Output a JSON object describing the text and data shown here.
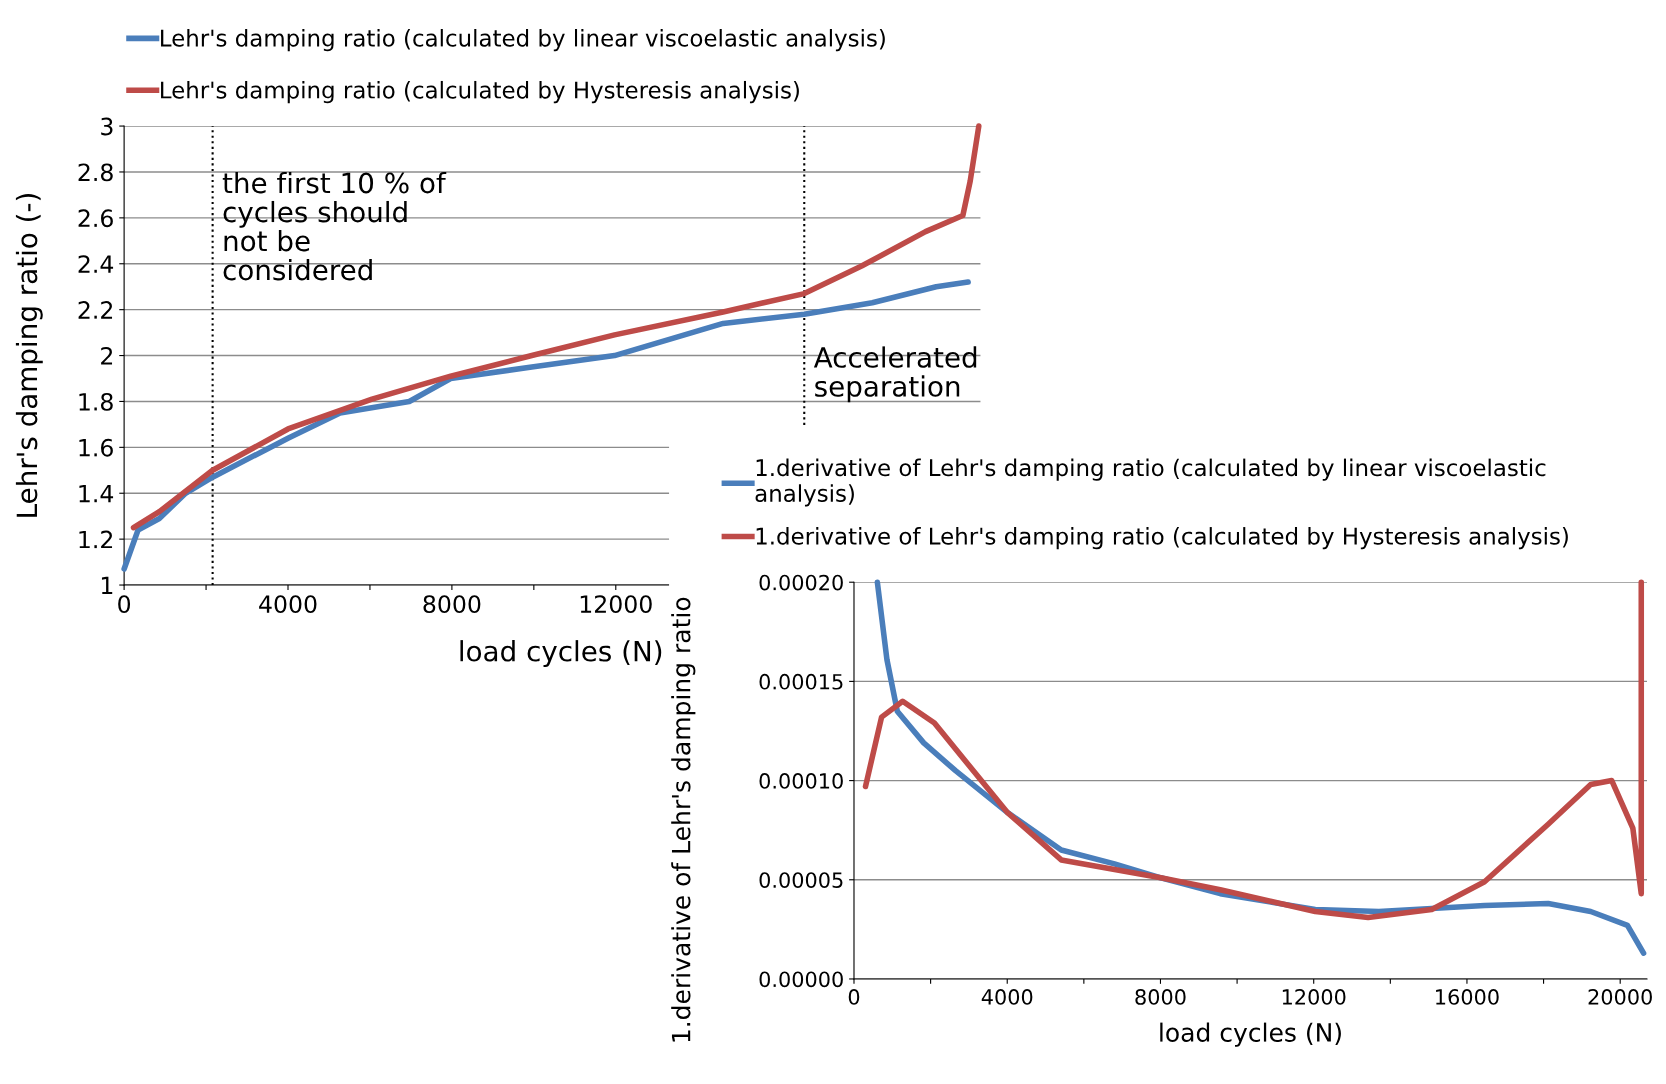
{
  "chart_data": [
    {
      "type": "line",
      "ylabel": "Lehr's damping ratio (-)",
      "xlabel": "load cycles (N)",
      "xlim": [
        0,
        20900
      ],
      "ylim": [
        1,
        3
      ],
      "xticks": [
        0,
        {
          "value": 2000,
          "label": null
        },
        4000,
        {
          "value": 6000,
          "label": null
        },
        8000,
        {
          "value": 10000,
          "label": null
        },
        12000
      ],
      "yticks": [
        1,
        1.2,
        1.4,
        1.6,
        1.8,
        2,
        2.2,
        2.4,
        2.6,
        2.8,
        3
      ],
      "grid": "y",
      "legend": "top",
      "line_style": "solid",
      "marker": "none",
      "ref_lines": [
        {
          "axis": "x",
          "value": 2160,
          "label": "the first 10 % of\ncycles should\nnot be\nconsidered",
          "line_style": "dotted",
          "color": "#000000"
        },
        {
          "axis": "x",
          "value": 16600,
          "label": "Accelerated\nseparation",
          "line_style": "dotted",
          "color": "#000000"
        }
      ],
      "series": [
        {
          "name": "Lehr's damping ratio (calculated by linear viscoelastic analysis)",
          "color": "#4a7ebb",
          "x": [
            0,
            340,
            860,
            1500,
            2160,
            4000,
            5270,
            6960,
            7970,
            9950,
            11970,
            14620,
            16600,
            18260,
            19820,
            20600
          ],
          "values": [
            1.07,
            1.24,
            1.29,
            1.4,
            1.47,
            1.64,
            1.75,
            1.8,
            1.9,
            1.95,
            2.0,
            2.14,
            2.18,
            2.23,
            2.3,
            2.32
          ]
        },
        {
          "name": "Lehr's damping ratio (calculated by Hysteresis analysis)",
          "color": "#be4b48",
          "x": [
            230,
            860,
            2160,
            4000,
            6050,
            7970,
            9950,
            11970,
            14620,
            16600,
            18000,
            19560,
            20470,
            20650,
            20860
          ],
          "values": [
            1.25,
            1.32,
            1.5,
            1.68,
            1.81,
            1.91,
            2.0,
            2.09,
            2.19,
            2.27,
            2.39,
            2.54,
            2.61,
            2.76,
            3.0
          ]
        }
      ]
    },
    {
      "type": "line",
      "ylabel": "1.derivative of Lehr's damping ratio",
      "xlabel": "load cycles (N)",
      "xlim": [
        0,
        20700
      ],
      "ylim": [
        0,
        0.0002
      ],
      "xticks": [
        0,
        {
          "value": 2000,
          "label": null
        },
        4000,
        {
          "value": 6000,
          "label": null
        },
        8000,
        {
          "value": 10000,
          "label": null
        },
        12000,
        {
          "value": 14000,
          "label": null
        },
        16000,
        {
          "value": 18000,
          "label": null
        },
        20000
      ],
      "yticks": [
        {
          "value": 0,
          "label": "0.00000"
        },
        {
          "value": 5e-05,
          "label": "0.00005"
        },
        {
          "value": 0.0001,
          "label": "0.00010"
        },
        {
          "value": 0.00015,
          "label": "0.00015"
        },
        {
          "value": 0.0002,
          "label": "0.00020"
        }
      ],
      "grid": "y",
      "legend": "top",
      "line_style": "solid",
      "marker": "none",
      "series": [
        {
          "name": "1.derivative of Lehr's damping ratio (calculated by linear viscoelastic\nanalysis)",
          "color": "#4a7ebb",
          "x": [
            610,
            860,
            1130,
            1820,
            2650,
            4000,
            5410,
            6800,
            8010,
            9560,
            12040,
            13700,
            16460,
            18120,
            19230,
            20190,
            20610
          ],
          "values": [
            0.0002,
            0.000161,
            0.000135,
            0.000119,
            0.000105,
            8.4e-05,
            6.5e-05,
            5.8e-05,
            5.1e-05,
            4.3e-05,
            3.5e-05,
            3.4e-05,
            3.7e-05,
            3.8e-05,
            3.4e-05,
            2.7e-05,
            1.3e-05
          ]
        },
        {
          "name": "1.derivative of Lehr's damping ratio (calculated by Hysteresis analysis)",
          "color": "#be4b48",
          "x": [
            300,
            720,
            1270,
            2100,
            4000,
            5410,
            8010,
            9560,
            12040,
            13420,
            15080,
            16460,
            18120,
            19230,
            19780,
            20330,
            20550,
            20550
          ],
          "values": [
            9.7e-05,
            0.000132,
            0.00014,
            0.000129,
            8.4e-05,
            6e-05,
            5.1e-05,
            4.5e-05,
            3.4e-05,
            3.1e-05,
            3.5e-05,
            4.9e-05,
            7.8e-05,
            9.8e-05,
            0.0001,
            7.6e-05,
            4.3e-05,
            0.0002
          ]
        }
      ]
    }
  ]
}
